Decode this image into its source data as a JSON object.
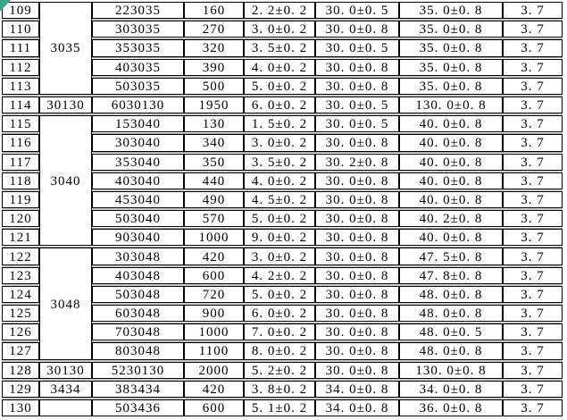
{
  "decorations": {
    "corner_triangle_color": "#38a48f",
    "grid_line_color": "#9c9c9c",
    "cell_border_color": "#000000"
  },
  "table": {
    "rows": [
      {
        "cells": [
          "109",
          "223035",
          "160",
          "2. 2±0. 2",
          "30. 0±0. 5",
          "35. 0±0. 8",
          "3. 7"
        ]
      },
      {
        "cells": [
          "110",
          "303035",
          "270",
          "3. 0±0. 2",
          "30. 0±0. 8",
          "35. 0±0. 8",
          "3. 7"
        ]
      },
      {
        "cells": [
          "111",
          "353035",
          "320",
          "3. 5±0. 2",
          "30. 0±0. 5",
          "35. 0±0. 8",
          "3. 7"
        ]
      },
      {
        "cells": [
          "112",
          "403035",
          "390",
          "4. 0±0. 2",
          "30. 0±0. 8",
          "35. 0±0. 8",
          "3. 7"
        ]
      },
      {
        "cells": [
          "113",
          "503035",
          "500",
          "5. 0±0. 2",
          "30. 0±0. 8",
          "35. 0±0. 8",
          "3. 7"
        ]
      },
      {
        "cells": [
          "114",
          "6030130",
          "1950",
          "6. 0±0. 2",
          "30. 0±0. 5",
          "130. 0±0. 8",
          "3. 7"
        ]
      },
      {
        "cells": [
          "115",
          "153040",
          "130",
          "1. 5±0. 2",
          "30. 0±0. 5",
          "40. 0±0. 8",
          "3. 7"
        ]
      },
      {
        "cells": [
          "116",
          "303040",
          "340",
          "3. 0±0. 2",
          "30. 0±0. 8",
          "40. 0±0. 8",
          "3. 7"
        ]
      },
      {
        "cells": [
          "117",
          "353040",
          "350",
          "3. 5±0. 2",
          "30. 2±0. 8",
          "40. 0±0. 8",
          "3. 7"
        ]
      },
      {
        "cells": [
          "118",
          "403040",
          "440",
          "4. 0±0. 2",
          "30. 0±0. 8",
          "40. 0±0. 8",
          "3. 7"
        ]
      },
      {
        "cells": [
          "119",
          "453040",
          "490",
          "4. 5±0. 2",
          "30. 0±0. 8",
          "40. 0±0. 8",
          "3. 7"
        ]
      },
      {
        "cells": [
          "120",
          "503040",
          "570",
          "5. 0±0. 2",
          "30. 0±0. 8",
          "40. 2±0. 8",
          "3. 7"
        ]
      },
      {
        "cells": [
          "121",
          "903040",
          "1000",
          "9. 0±0. 2",
          "30. 0±0. 8",
          "40. 0±0. 8",
          "3. 7"
        ]
      },
      {
        "cells": [
          "122",
          "303048",
          "420",
          "3. 0±0. 2",
          "30. 0±0. 8",
          "47. 5±0. 8",
          "3. 7"
        ]
      },
      {
        "cells": [
          "123",
          "403048",
          "600",
          "4. 2±0. 2",
          "30. 0±0. 8",
          "47. 8±0. 8",
          "3. 7"
        ]
      },
      {
        "cells": [
          "124",
          "503048",
          "720",
          "5. 0±0. 2",
          "30. 0±0. 8",
          "48. 0±0. 8",
          "3. 7"
        ]
      },
      {
        "cells": [
          "125",
          "603048",
          "900",
          "6. 0±0. 2",
          "30. 0±0. 8",
          "48. 0±0. 8",
          "3. 7"
        ]
      },
      {
        "cells": [
          "126",
          "703048",
          "1000",
          "7. 0±0. 2",
          "30. 0±0. 8",
          "48. 0±0. 5",
          "3. 7"
        ]
      },
      {
        "cells": [
          "127",
          "803048",
          "1100",
          "8. 0±0. 2",
          "30. 0±0. 8",
          "48. 0±0. 8",
          "3. 7"
        ]
      },
      {
        "cells": [
          "128",
          "5230130",
          "2000",
          "5. 2±0. 2",
          "30. 0±0. 8",
          "130. 0±0. 8",
          "3. 7"
        ]
      },
      {
        "cells": [
          "129",
          "383434",
          "420",
          "3. 8±0. 2",
          "34. 0±0. 8",
          "34. 0±0. 8",
          "3. 7"
        ]
      },
      {
        "cells": [
          "130",
          "503436",
          "600",
          "5. 1±0. 2",
          "34. 0±0. 8",
          "36. 0±0. 8",
          "3. 7"
        ]
      }
    ],
    "groups": [
      {
        "label": "3035",
        "start": 1,
        "span": 5
      },
      {
        "label": "30130",
        "start": 6,
        "span": 1
      },
      {
        "label": "3040",
        "start": 7,
        "span": 7
      },
      {
        "label": "3048",
        "start": 14,
        "span": 6
      },
      {
        "label": "30130",
        "start": 20,
        "span": 1
      },
      {
        "label": "3434",
        "start": 21,
        "span": 1
      },
      {
        "label": "",
        "start": 22,
        "span": 1
      }
    ]
  }
}
